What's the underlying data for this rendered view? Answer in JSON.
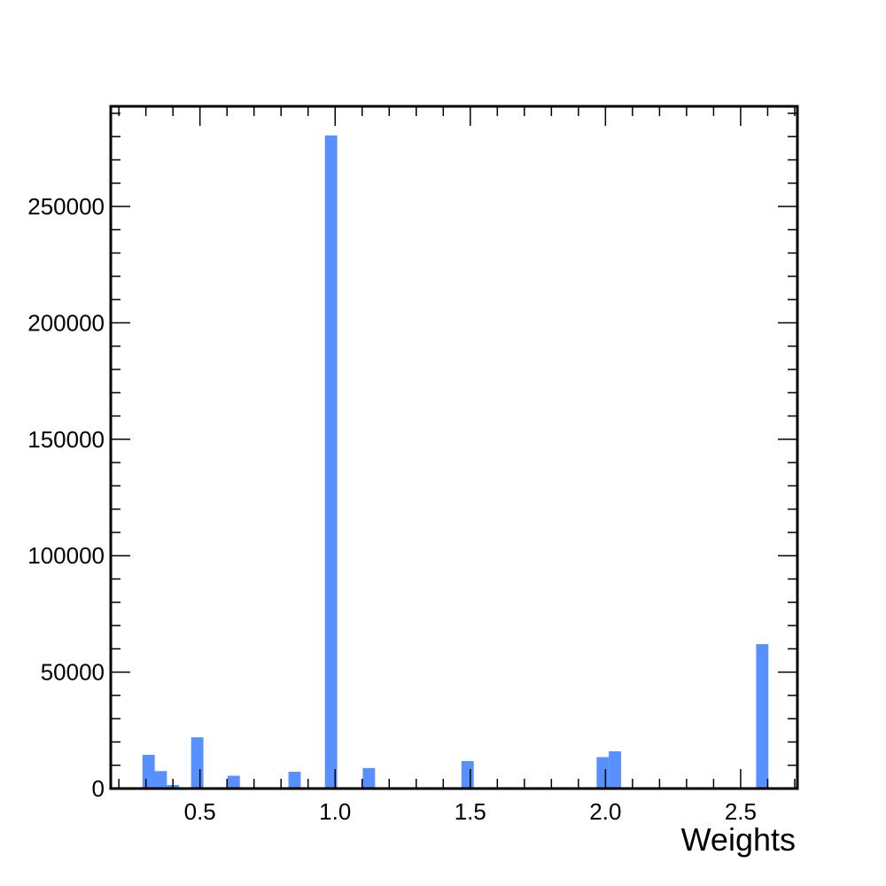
{
  "chart_data": {
    "type": "bar",
    "xlabel": "Weights",
    "ylabel": "",
    "xlim": [
      0.17,
      2.71
    ],
    "ylim": [
      0,
      293000
    ],
    "x_ticks": [
      "0.5",
      "1.0",
      "1.5",
      "2.0",
      "2.5"
    ],
    "y_ticks": [
      "0",
      "50000",
      "100000",
      "150000",
      "200000",
      "250000"
    ],
    "bin_width": 0.0454,
    "bins": [
      {
        "x": 0.31,
        "value": 14500
      },
      {
        "x": 0.355,
        "value": 7500
      },
      {
        "x": 0.4,
        "value": 1500
      },
      {
        "x": 0.49,
        "value": 22000
      },
      {
        "x": 0.625,
        "value": 5500
      },
      {
        "x": 0.85,
        "value": 7200
      },
      {
        "x": 0.985,
        "value": 280500
      },
      {
        "x": 1.125,
        "value": 8800
      },
      {
        "x": 1.49,
        "value": 11800
      },
      {
        "x": 1.99,
        "value": 13500
      },
      {
        "x": 2.035,
        "value": 16000
      },
      {
        "x": 2.58,
        "value": 62000
      }
    ],
    "grid": false,
    "legend": "none",
    "colors": {
      "bar": "#5890ff",
      "axis": "#000000",
      "background": "#ffffff"
    }
  }
}
